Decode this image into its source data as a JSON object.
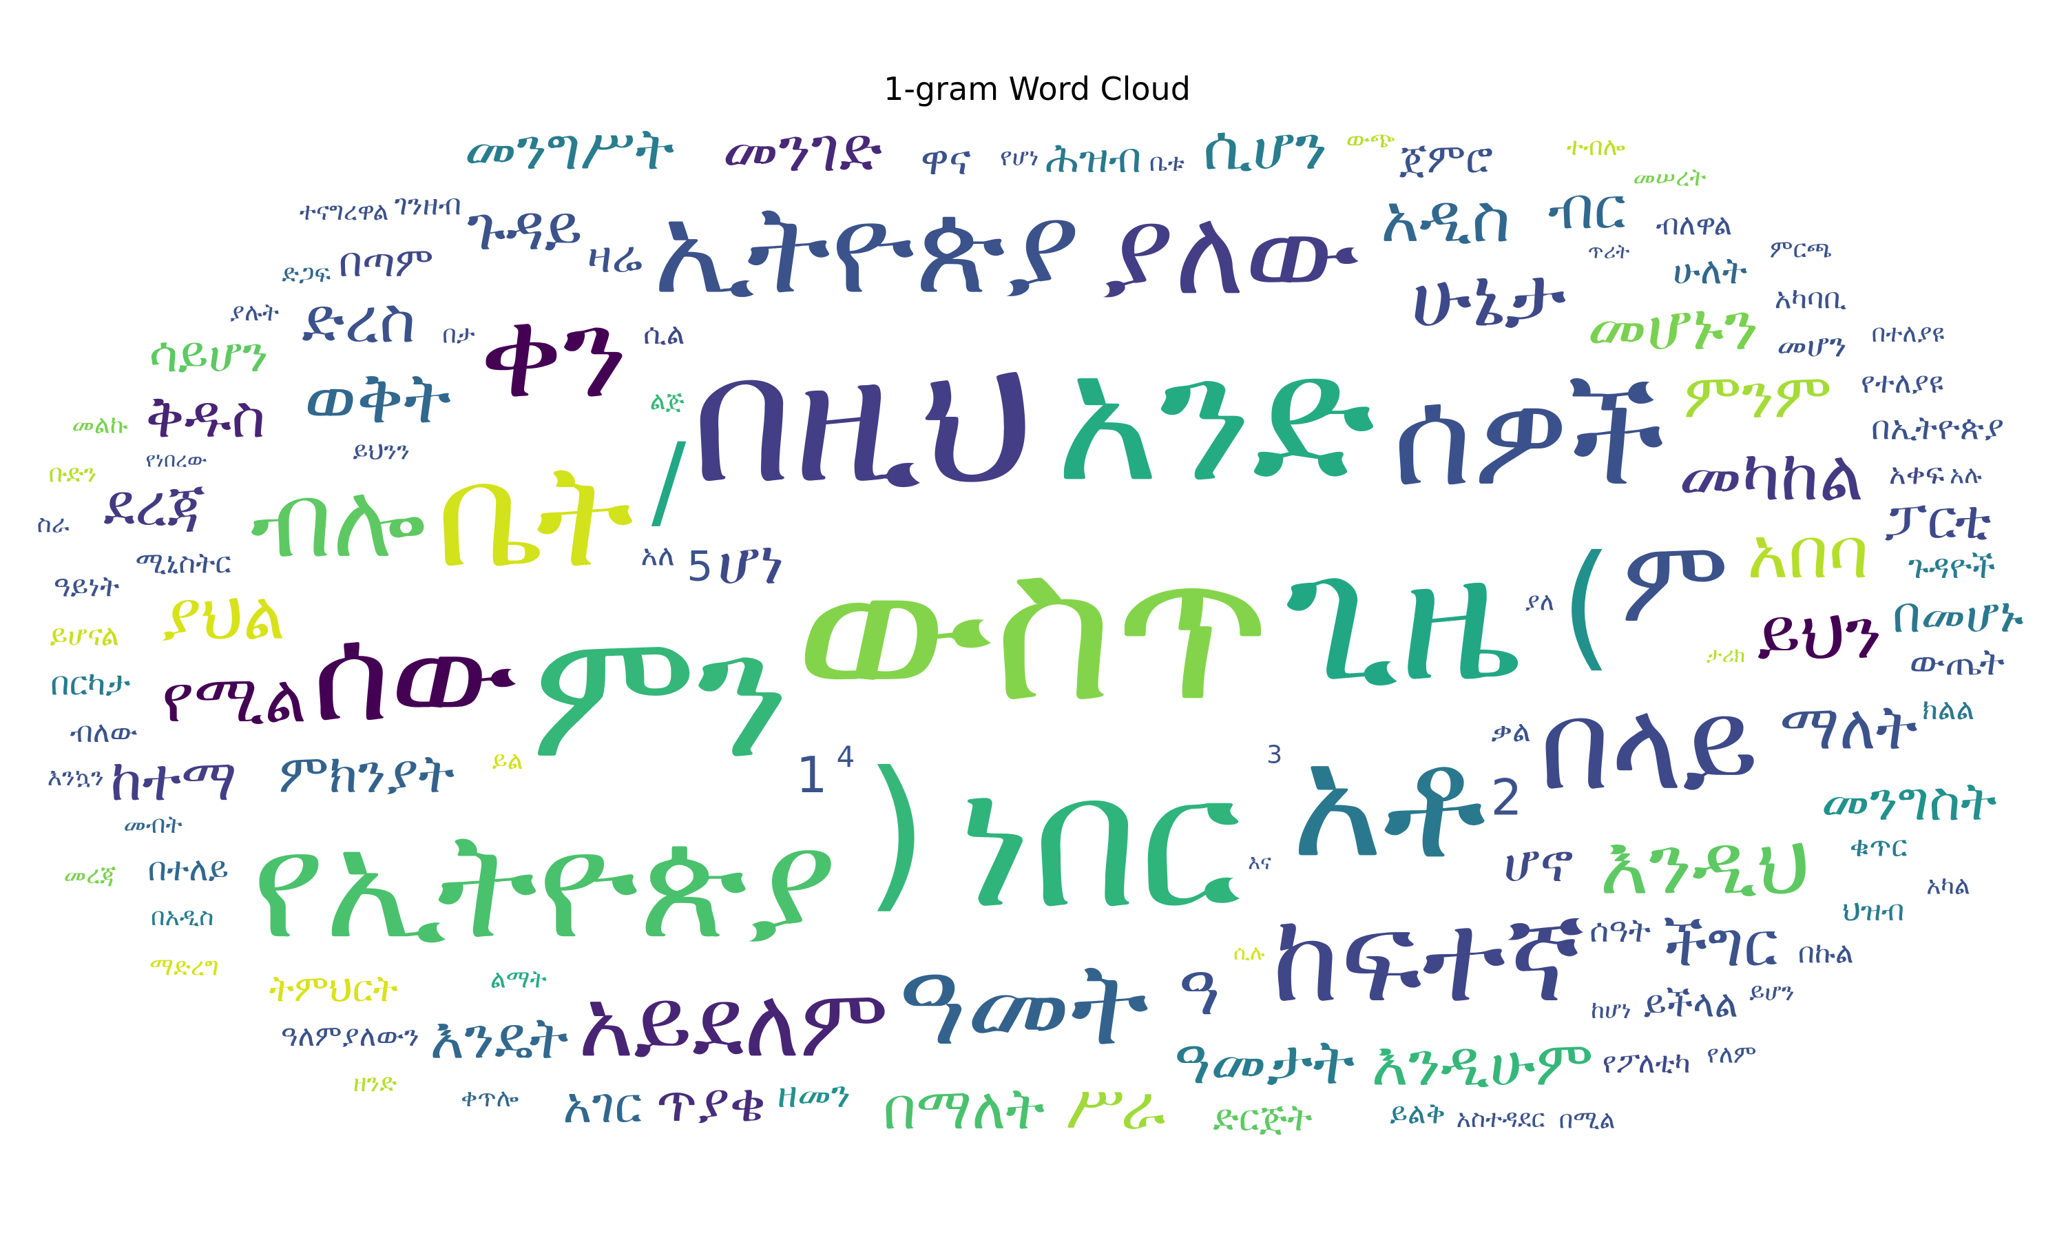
{
  "chart_data": {
    "type": "wordcloud",
    "title": "1-gram Word Cloud",
    "colormap": "viridis",
    "background": "#ffffff",
    "words": [
      {
        "text": "ውስጥ",
        "weight": 1.0,
        "color": "#84d44b"
      },
      {
        "text": "ነበር",
        "weight": 0.9,
        "color": "#2fb47c"
      },
      {
        "text": "ምን",
        "weight": 0.86,
        "color": "#35b779"
      },
      {
        "text": "በዚህ",
        "weight": 0.86,
        "color": "#433e85"
      },
      {
        "text": "አንድ",
        "weight": 0.86,
        "color": "#25ab82"
      },
      {
        "text": "ጊዜ",
        "weight": 0.86,
        "color": "#22a785"
      },
      {
        "text": "አቶ",
        "weight": 0.76,
        "color": "#2a788e"
      },
      {
        "text": "ሰው",
        "weight": 0.64,
        "color": "#440154"
      },
      {
        "text": "ኢትዮጵያ",
        "weight": 0.6,
        "color": "#3b528b"
      },
      {
        "text": "የኢትዮጵያ",
        "weight": 0.72,
        "color": "#4ac16d"
      },
      {
        "text": "በላይ",
        "weight": 0.6,
        "color": "#3e4989"
      },
      {
        "text": "ቤት",
        "weight": 0.7,
        "color": "#d2e21b"
      },
      {
        "text": "ሰዎች",
        "weight": 0.66,
        "color": "#3b518b"
      },
      {
        "text": "ከፍተኛ",
        "weight": 0.6,
        "color": "#3f4788"
      },
      {
        "text": "ዓመት",
        "weight": 0.56,
        "color": "#33638d"
      },
      {
        "text": "ያለው",
        "weight": 0.58,
        "color": "#433e85"
      },
      {
        "text": "ቀን",
        "weight": 0.6,
        "color": "#440154"
      },
      {
        "text": "ም",
        "weight": 0.56,
        "color": "#3b528b"
      },
      {
        "text": "ብሎ",
        "weight": 0.5,
        "color": "#5ec962"
      },
      {
        "text": "አይደለም",
        "weight": 0.46,
        "color": "#482475"
      },
      {
        "text": ")",
        "weight": 0.8,
        "color": "#35b779"
      },
      {
        "text": "(",
        "weight": 0.66,
        "color": "#21918c"
      },
      {
        "text": "/",
        "weight": 0.5,
        "color": "#22a884"
      },
      {
        "text": "ሁኔታ",
        "weight": 0.4,
        "color": "#3e4989"
      },
      {
        "text": "እንዲህ",
        "weight": 0.4,
        "color": "#5ec962"
      },
      {
        "text": "ወቅት",
        "weight": 0.34,
        "color": "#31688e"
      },
      {
        "text": "መካከል",
        "weight": 0.34,
        "color": "#443983"
      },
      {
        "text": "ዓመታት",
        "weight": 0.3,
        "color": "#287c8e"
      },
      {
        "text": "አበባ",
        "weight": 0.34,
        "color": "#b5de2b"
      },
      {
        "text": "መሆኑን",
        "weight": 0.32,
        "color": "#7ad151"
      },
      {
        "text": "ምንም",
        "weight": 0.3,
        "color": "#a5db36"
      },
      {
        "text": "ምክንያት",
        "weight": 0.26,
        "color": "#33638d"
      },
      {
        "text": "ዓ",
        "weight": 0.34,
        "color": "#3b518b"
      },
      {
        "text": "በመሆኑ",
        "weight": 0.24,
        "color": "#2a788e"
      },
      {
        "text": "ማለት",
        "weight": 0.3,
        "color": "#3b528b"
      },
      {
        "text": "የሚል",
        "weight": 0.32,
        "color": "#440154"
      },
      {
        "text": "ጥያቄ",
        "weight": 0.26,
        "color": "#472d7b"
      },
      {
        "text": "ድረስ",
        "weight": 0.3,
        "color": "#3b528b"
      },
      {
        "text": "ፓርቲ",
        "weight": 0.26,
        "color": "#3e4989"
      },
      {
        "text": "ጉዳይ",
        "weight": 0.3,
        "color": "#3b528b"
      },
      {
        "text": "መንገድ",
        "weight": 0.3,
        "color": "#482878"
      },
      {
        "text": "መንግስት",
        "weight": 0.26,
        "color": "#21918c"
      },
      {
        "text": "ያህል",
        "weight": 0.32,
        "color": "#d8e219"
      },
      {
        "text": "ሆኖ",
        "weight": 0.26,
        "color": "#3e4a89"
      },
      {
        "text": "በማለት",
        "weight": 0.28,
        "color": "#4ac16d"
      },
      {
        "text": "እንዴት",
        "weight": 0.28,
        "color": "#31688e"
      },
      {
        "text": "ሆነ",
        "weight": 0.3,
        "color": "#3e4989"
      },
      {
        "text": "አገር",
        "weight": 0.24,
        "color": "#31688e"
      },
      {
        "text": "ሲሆን",
        "weight": 0.3,
        "color": "#287d8e"
      },
      {
        "text": "ከተማ",
        "weight": 0.28,
        "color": "#433e85"
      },
      {
        "text": "ደረጃ",
        "weight": 0.28,
        "color": "#443a83"
      },
      {
        "text": "ቅዱስ",
        "weight": 0.28,
        "color": "#482475"
      },
      {
        "text": "አዲስ",
        "weight": 0.32,
        "color": "#31688e"
      },
      {
        "text": "ችግር",
        "weight": 0.3,
        "color": "#3b528b"
      },
      {
        "text": "ይህን",
        "weight": 0.34,
        "color": "#440154"
      },
      {
        "text": "ብር",
        "weight": 0.28,
        "color": "#31688e"
      },
      {
        "text": "እንዲሁም",
        "weight": 0.3,
        "color": "#35b779"
      },
      {
        "text": "መንግሥት",
        "weight": 0.28,
        "color": "#287c8e"
      },
      {
        "text": "ሥራ",
        "weight": 0.3,
        "color": "#a0da39"
      },
      {
        "text": "ሳይሆን",
        "weight": 0.24,
        "color": "#5ec962"
      },
      {
        "text": "ዋና",
        "weight": 0.2,
        "color": "#3b528b"
      },
      {
        "text": "ዛሬ",
        "weight": 0.22,
        "color": "#3b528b"
      },
      {
        "text": "ሕዝብ",
        "weight": 0.2,
        "color": "#2a788e"
      },
      {
        "text": "ዘመን",
        "weight": 0.18,
        "color": "#21918c"
      },
      {
        "text": "ሰዓት",
        "weight": 0.16,
        "color": "#3b528b"
      },
      {
        "text": "ድርጅት",
        "weight": 0.18,
        "color": "#5ec962"
      },
      {
        "text": "ሁለት",
        "weight": 0.18,
        "color": "#31688e"
      },
      {
        "text": "ውጤት",
        "weight": 0.18,
        "color": "#3b528b"
      },
      {
        "text": "መሆን",
        "weight": 0.16,
        "color": "#3b528b"
      },
      {
        "text": "ይችላል",
        "weight": 0.18,
        "color": "#3b528b"
      },
      {
        "text": "ትምህርት",
        "weight": 0.18,
        "color": "#d8e219"
      },
      {
        "text": "በጣም",
        "weight": 0.2,
        "color": "#3e4989"
      },
      {
        "text": "ጉዳዮች",
        "weight": 0.16,
        "color": "#287c8e"
      },
      {
        "text": "ጀምሮ",
        "weight": 0.2,
        "color": "#3b528b"
      },
      {
        "text": "ሚኒስትር",
        "weight": 0.14,
        "color": "#3b528b"
      },
      {
        "text": "በኢትዮጵያ",
        "weight": 0.16,
        "color": "#3b528b"
      },
      {
        "text": "ይህንን",
        "weight": 0.12,
        "color": "#3b528b"
      },
      {
        "text": "ልጅ",
        "weight": 0.12,
        "color": "#35b779"
      },
      {
        "text": "ልማት",
        "weight": 0.12,
        "color": "#25ab82"
      },
      {
        "text": "መብት",
        "weight": 0.12,
        "color": "#31688e"
      },
      {
        "text": "አስተዳደር",
        "weight": 0.12,
        "color": "#3b528b"
      },
      {
        "text": "አቀፍ",
        "weight": 0.14,
        "color": "#3e4989"
      },
      {
        "text": "የሆነ",
        "weight": 0.12,
        "color": "#3b528b"
      },
      {
        "text": "አለ",
        "weight": 0.14,
        "color": "#3b528b"
      },
      {
        "text": "ያሉት",
        "weight": 0.12,
        "color": "#3b528b"
      },
      {
        "text": "ቁጥር",
        "weight": 0.14,
        "color": "#287c8e"
      },
      {
        "text": "ቃል",
        "weight": 0.14,
        "color": "#3b528b"
      },
      {
        "text": "በተለይ",
        "weight": 0.16,
        "color": "#31688e"
      },
      {
        "text": "ውጭ",
        "weight": 0.12,
        "color": "#b5de2b"
      },
      {
        "text": "ድጋፍ",
        "weight": 0.12,
        "color": "#31688e"
      },
      {
        "text": "ይልቅ",
        "weight": 0.14,
        "color": "#287c8e"
      },
      {
        "text": "ብለው",
        "weight": 0.14,
        "color": "#3b528b"
      },
      {
        "text": "ይሆን",
        "weight": 0.12,
        "color": "#3b528b"
      },
      {
        "text": "ቀጥሎ",
        "weight": 0.12,
        "color": "#31688e"
      },
      {
        "text": "ያለ",
        "weight": 0.12,
        "color": "#3b528b"
      },
      {
        "text": "በአዲስ",
        "weight": 0.12,
        "color": "#287c8e"
      },
      {
        "text": "ይሆናል",
        "weight": 0.14,
        "color": "#c8e020"
      },
      {
        "text": "ይል",
        "weight": 0.12,
        "color": "#d2e21b"
      },
      {
        "text": "እንኳን",
        "weight": 0.12,
        "color": "#3b528b"
      },
      {
        "text": "በርካታ",
        "weight": 0.16,
        "color": "#287c8e"
      },
      {
        "text": "ቤቱ",
        "weight": 0.12,
        "color": "#3b528b"
      },
      {
        "text": "መልኩ",
        "weight": 0.12,
        "color": "#7ad151"
      },
      {
        "text": "ዓይነት",
        "weight": 0.14,
        "color": "#3b528b"
      },
      {
        "text": "ሲል",
        "weight": 0.14,
        "color": "#3e4989"
      },
      {
        "text": "ብለዋል",
        "weight": 0.14,
        "color": "#3b528b"
      },
      {
        "text": "ተናግረዋል",
        "weight": 0.12,
        "color": "#3b528b"
      },
      {
        "text": "ዓለምያለውን",
        "weight": 0.14,
        "color": "#3b528b"
      },
      {
        "text": "አካባቢ",
        "weight": 0.14,
        "color": "#3b528b"
      },
      {
        "text": "ገንዘብ",
        "weight": 0.14,
        "color": "#3b528b"
      },
      {
        "text": "ታሪክ",
        "weight": 0.1,
        "color": "#b5de2b"
      },
      {
        "text": "ጥሪት",
        "weight": 0.1,
        "color": "#3b528b"
      },
      {
        "text": "ክልል",
        "weight": 0.14,
        "color": "#2a788e"
      },
      {
        "text": "ተብሎ",
        "weight": 0.12,
        "color": "#bddf26"
      },
      {
        "text": "ከሆነ",
        "weight": 0.12,
        "color": "#3b528b"
      },
      {
        "text": "መሠረት",
        "weight": 0.12,
        "color": "#7ad151"
      },
      {
        "text": "በታ",
        "weight": 0.12,
        "color": "#3b528b"
      },
      {
        "text": "የተለያዩ",
        "weight": 0.14,
        "color": "#3b528b"
      },
      {
        "text": "ቡድን",
        "weight": 0.12,
        "color": "#b5de2b"
      },
      {
        "text": "ህዝብ",
        "weight": 0.14,
        "color": "#287c8e"
      },
      {
        "text": "ምርጫ",
        "weight": 0.12,
        "color": "#3b528b"
      },
      {
        "text": "በተለያዩ",
        "weight": 0.12,
        "color": "#3b528b"
      },
      {
        "text": "በኩል",
        "weight": 0.14,
        "color": "#3b528b"
      },
      {
        "text": "የፖለቲካ",
        "weight": 0.14,
        "color": "#3e4989"
      },
      {
        "text": "የነበረው",
        "weight": 0.1,
        "color": "#3b528b"
      },
      {
        "text": "ሲሉ",
        "weight": 0.1,
        "color": "#d2e21b"
      },
      {
        "text": "አካል",
        "weight": 0.12,
        "color": "#3b528b"
      },
      {
        "text": "የለም",
        "weight": 0.12,
        "color": "#3b528b"
      },
      {
        "text": "በሚል",
        "weight": 0.12,
        "color": "#3b528b"
      },
      {
        "text": "አሉ",
        "weight": 0.12,
        "color": "#3b528b"
      },
      {
        "text": "እና",
        "weight": 0.1,
        "color": "#3b528b"
      },
      {
        "text": "ዘንድ",
        "weight": 0.12,
        "color": "#b5de2b"
      },
      {
        "text": "ማድረግ",
        "weight": 0.12,
        "color": "#d2e21b"
      },
      {
        "text": "ስራ",
        "weight": 0.12,
        "color": "#3b528b"
      },
      {
        "text": "መረጃ",
        "weight": 0.12,
        "color": "#7ad151"
      },
      {
        "text": "1",
        "weight": 0.24,
        "color": "#3b528b"
      },
      {
        "text": "2",
        "weight": 0.24,
        "color": "#3b528b"
      },
      {
        "text": "3",
        "weight": 0.12,
        "color": "#3b528b"
      },
      {
        "text": "4",
        "weight": 0.14,
        "color": "#3b528b"
      },
      {
        "text": "5",
        "weight": 0.2,
        "color": "#3b528b"
      }
    ]
  }
}
